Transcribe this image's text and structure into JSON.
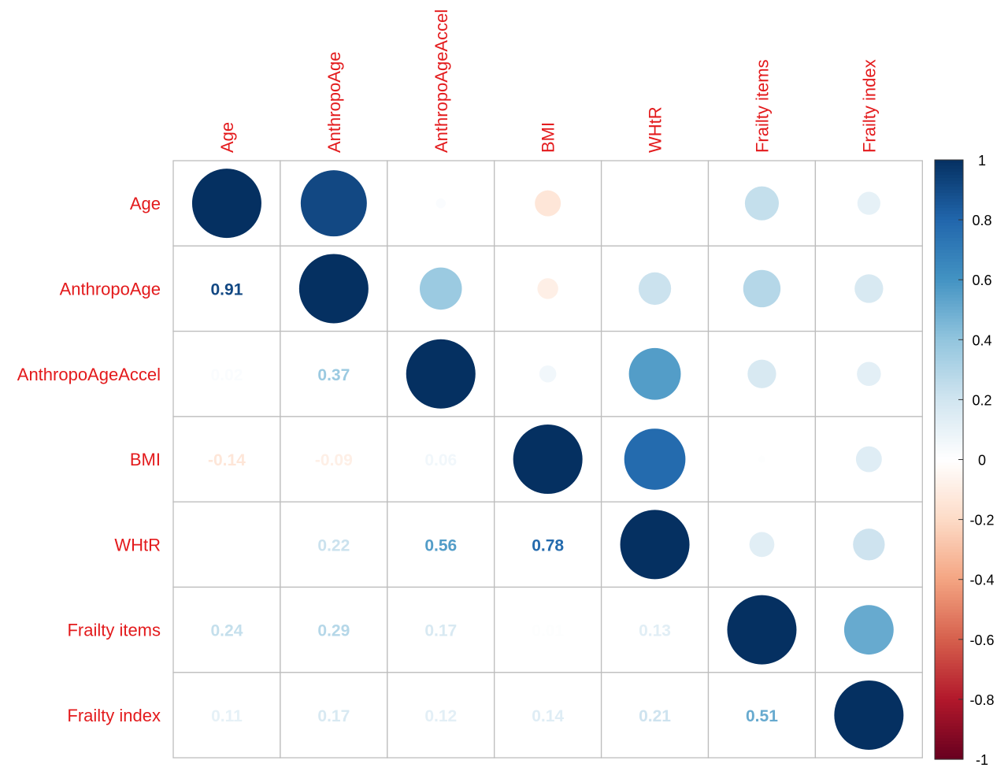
{
  "chart_data": {
    "type": "heatmap",
    "variables": [
      "Age",
      "AnthropoAge",
      "AnthropoAgeAccel",
      "BMI",
      "WHtR",
      "Frailty items",
      "Frailty index"
    ],
    "matrix": [
      [
        1.0,
        0.91,
        0.02,
        -0.14,
        0.0,
        0.24,
        0.11
      ],
      [
        0.91,
        1.0,
        0.37,
        -0.09,
        0.22,
        0.29,
        0.17
      ],
      [
        0.02,
        0.37,
        1.0,
        0.06,
        0.56,
        0.17,
        0.12
      ],
      [
        -0.14,
        -0.09,
        0.06,
        1.0,
        0.78,
        0.01,
        0.14
      ],
      [
        0.0,
        0.22,
        0.56,
        0.78,
        1.0,
        0.13,
        0.21
      ],
      [
        0.24,
        0.29,
        0.17,
        0.01,
        0.13,
        1.0,
        0.51
      ],
      [
        0.11,
        0.17,
        0.12,
        0.14,
        0.21,
        0.51,
        1.0
      ]
    ],
    "upper": "circle",
    "lower": "number",
    "colorbar": {
      "range": [
        -1,
        1
      ],
      "ticks": [
        "1",
        "0.8",
        "0.6",
        "0.4",
        "0.2",
        "0",
        "-0.2",
        "-0.4",
        "-0.6",
        "-0.8",
        "-1"
      ]
    },
    "colors": {
      "negative_end": "#67001f",
      "mid": "#ffffff",
      "positive_end": "#053061",
      "label": "#e31a1c",
      "grid": "#bdbdbd"
    },
    "grid": true,
    "legend": "right"
  }
}
